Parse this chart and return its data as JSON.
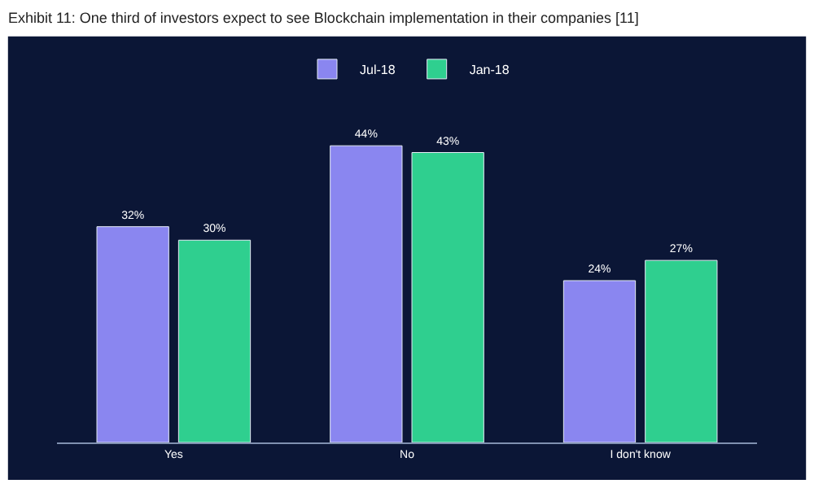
{
  "chart_data": {
    "type": "bar",
    "title": "Exhibit 11: One third of investors expect to see Blockchain implementation in their companies [11]",
    "categories": [
      "Yes",
      "No",
      "I don't know"
    ],
    "series": [
      {
        "name": "Jul-18",
        "color": "#8a86f0",
        "values": [
          32,
          44,
          24
        ],
        "value_labels": [
          "32%",
          "44%",
          "24%"
        ]
      },
      {
        "name": "Jan-18",
        "color": "#2fcf8f",
        "values": [
          30,
          43,
          27
        ],
        "value_labels": [
          "30%",
          "43%",
          "27%"
        ]
      }
    ],
    "legend": "top",
    "grid": false,
    "tick_labels": "x"
  }
}
